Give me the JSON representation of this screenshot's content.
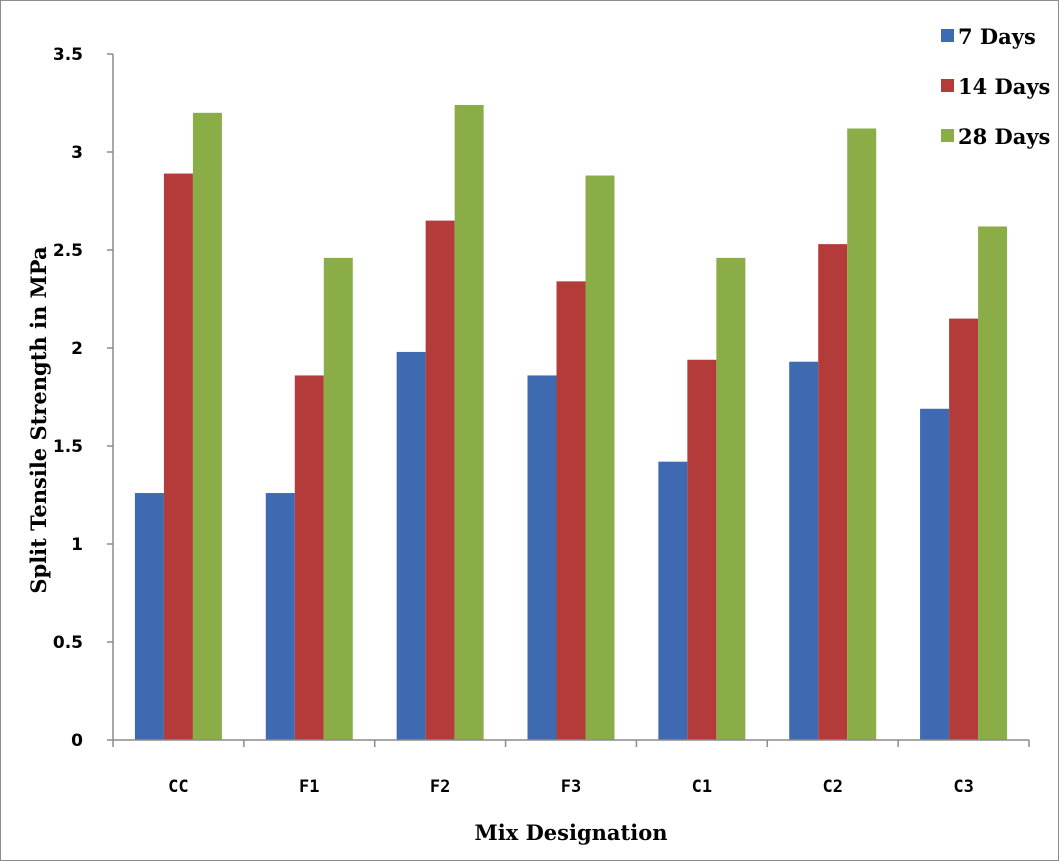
{
  "chart_data": {
    "type": "bar",
    "title": "",
    "xlabel": "Mix Designation",
    "ylabel": "Split Tensile Strength in MPa",
    "categories": [
      "CC",
      "F1",
      "F2",
      "F3",
      "C1",
      "C2",
      "C3"
    ],
    "series": [
      {
        "name": "7 Days",
        "color": "#3d6ab0",
        "values": [
          1.26,
          1.26,
          1.98,
          1.86,
          1.42,
          1.93,
          1.69
        ]
      },
      {
        "name": "14 Days",
        "color": "#b33c3a",
        "values": [
          2.89,
          1.86,
          2.65,
          2.34,
          1.94,
          2.53,
          2.15
        ]
      },
      {
        "name": "28 Days",
        "color": "#8aad47",
        "values": [
          3.2,
          2.46,
          3.24,
          2.88,
          2.46,
          3.12,
          2.62
        ]
      }
    ],
    "yticks": [
      "0",
      "0.5",
      "1",
      "1.5",
      "2",
      "2.5",
      "3",
      "3.5"
    ],
    "ylim": [
      0,
      3.5
    ],
    "grid": false,
    "legend_position": "top-right"
  }
}
